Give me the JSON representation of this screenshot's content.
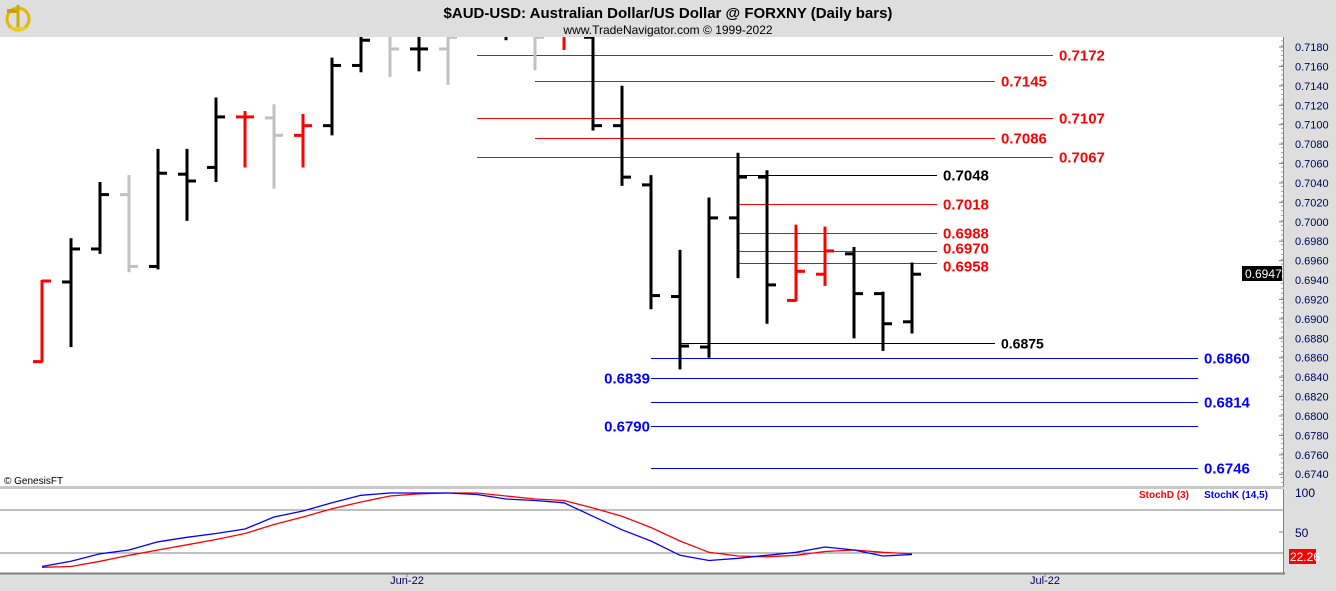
{
  "header": {
    "title": "$AUD-USD:  Australian Dollar/US Dollar @ FORXNY  (Daily bars)",
    "subtitle": "www.TradeNavigator.com © 1999-2022",
    "logo_icon": "sextant-logo-icon"
  },
  "watermark": "© GenesisFT",
  "colors": {
    "up": "#000000",
    "down": "#ff0000",
    "neutral": "#c0c0c0",
    "support": "#0000ff",
    "resistance": "#ff0000",
    "stochK": "#0000ff",
    "stochD": "#ff0000"
  },
  "chart_data": [
    {
      "type": "ohlc",
      "title": "$AUD-USD Daily bars",
      "y_axis": {
        "min": 0.674,
        "max": 0.718,
        "step": 0.002,
        "tick_labels": [
          "0.7180",
          "0.7160",
          "0.7140",
          "0.7120",
          "0.7100",
          "0.7080",
          "0.7060",
          "0.7040",
          "0.7020",
          "0.7000",
          "0.6980",
          "0.6960",
          "0.6940",
          "0.6920",
          "0.6900",
          "0.6880",
          "0.6860",
          "0.6840",
          "0.6820",
          "0.6800",
          "0.6780",
          "0.6760",
          "0.6740"
        ]
      },
      "x_axis": {
        "tick_labels": [
          {
            "label": "Jun-22",
            "bar": 13
          },
          {
            "label": "Jul-22",
            "bar": 35
          }
        ]
      },
      "current_price": "0.6947",
      "bars": [
        {
          "o": 0.6856,
          "h": 0.6939,
          "l": 0.6856,
          "c": 0.6939,
          "color": "down"
        },
        {
          "o": 0.6938,
          "h": 0.6982,
          "l": 0.6872,
          "c": 0.6972,
          "color": "up"
        },
        {
          "o": 0.6972,
          "h": 0.704,
          "l": 0.6968,
          "c": 0.7028,
          "color": "up"
        },
        {
          "o": 0.7028,
          "h": 0.7047,
          "l": 0.6949,
          "c": 0.6954,
          "color": "neutral"
        },
        {
          "o": 0.6954,
          "h": 0.7074,
          "l": 0.6952,
          "c": 0.705,
          "color": "up"
        },
        {
          "o": 0.7049,
          "h": 0.7074,
          "l": 0.7002,
          "c": 0.7042,
          "color": "up"
        },
        {
          "o": 0.7056,
          "h": 0.7127,
          "l": 0.7042,
          "c": 0.7108,
          "color": "up"
        },
        {
          "o": 0.7108,
          "h": 0.7113,
          "l": 0.7057,
          "c": 0.7108,
          "color": "down"
        },
        {
          "o": 0.7107,
          "h": 0.712,
          "l": 0.7035,
          "c": 0.7089,
          "color": "neutral"
        },
        {
          "o": 0.7089,
          "h": 0.711,
          "l": 0.7057,
          "c": 0.7099,
          "color": "down"
        },
        {
          "o": 0.7099,
          "h": 0.7168,
          "l": 0.709,
          "c": 0.7161,
          "color": "up"
        },
        {
          "o": 0.7161,
          "h": 0.7198,
          "l": 0.7155,
          "c": 0.7187,
          "color": "up"
        },
        {
          "o": 0.7198,
          "h": 0.7203,
          "l": 0.715,
          "c": 0.7178,
          "color": "neutral"
        },
        {
          "o": 0.7178,
          "h": 0.72,
          "l": 0.7156,
          "c": 0.7178,
          "color": "up"
        },
        {
          "o": 0.7178,
          "h": 0.72,
          "l": 0.7142,
          "c": 0.719,
          "color": "neutral"
        },
        {
          "o": 0.722,
          "h": 0.724,
          "l": 0.7195,
          "c": 0.721,
          "color": "up"
        },
        {
          "o": 0.72,
          "h": 0.723,
          "l": 0.7188,
          "c": 0.721,
          "color": "up"
        },
        {
          "o": 0.72,
          "h": 0.722,
          "l": 0.7157,
          "c": 0.719,
          "color": "neutral"
        },
        {
          "o": 0.7195,
          "h": 0.7215,
          "l": 0.7178,
          "c": 0.72,
          "color": "down"
        },
        {
          "o": 0.719,
          "h": 0.721,
          "l": 0.7095,
          "c": 0.7099,
          "color": "up"
        },
        {
          "o": 0.7099,
          "h": 0.7139,
          "l": 0.7038,
          "c": 0.7046,
          "color": "up"
        },
        {
          "o": 0.7038,
          "h": 0.7047,
          "l": 0.6911,
          "c": 0.6924,
          "color": "up"
        },
        {
          "o": 0.6923,
          "h": 0.697,
          "l": 0.6849,
          "c": 0.6872,
          "color": "up"
        },
        {
          "o": 0.6871,
          "h": 0.7024,
          "l": 0.6861,
          "c": 0.7004,
          "color": "up"
        },
        {
          "o": 0.7004,
          "h": 0.707,
          "l": 0.6943,
          "c": 0.7046,
          "color": "up"
        },
        {
          "o": 0.7046,
          "h": 0.7052,
          "l": 0.6896,
          "c": 0.6935,
          "color": "up"
        },
        {
          "o": 0.6919,
          "h": 0.6996,
          "l": 0.6919,
          "c": 0.6949,
          "color": "down"
        },
        {
          "o": 0.6946,
          "h": 0.6994,
          "l": 0.6935,
          "c": 0.697,
          "color": "down"
        },
        {
          "o": 0.6967,
          "h": 0.6973,
          "l": 0.6881,
          "c": 0.6926,
          "color": "up"
        },
        {
          "o": 0.6926,
          "h": 0.6927,
          "l": 0.6868,
          "c": 0.6895,
          "color": "up"
        },
        {
          "o": 0.6897,
          "h": 0.6957,
          "l": 0.6886,
          "c": 0.6946,
          "color": "up"
        }
      ],
      "levels": [
        {
          "price": 0.7172,
          "label": "0.7172",
          "color": "#ff0000"
        },
        {
          "price": 0.7145,
          "label": "0.7145",
          "color": "#ff0000"
        },
        {
          "price": 0.7107,
          "label": "0.7107",
          "color": "#ff0000"
        },
        {
          "price": 0.7086,
          "label": "0.7086",
          "color": "#ff0000"
        },
        {
          "price": 0.7067,
          "label": "0.7067",
          "color": "#ff0000"
        },
        {
          "price": 0.7048,
          "label": "0.7048",
          "color": "#000000"
        },
        {
          "price": 0.7018,
          "label": "0.7018",
          "color": "#ff0000"
        },
        {
          "price": 0.6988,
          "label": "0.6988",
          "color": "#ff0000"
        },
        {
          "price": 0.697,
          "label": "0.6970",
          "color": "#ff0000"
        },
        {
          "price": 0.6958,
          "label": "0.6958",
          "color": "#ff0000"
        },
        {
          "price": 0.6875,
          "label": "0.6875",
          "color": "#000000"
        },
        {
          "price": 0.686,
          "label": "0.6860",
          "color": "#0000ff"
        },
        {
          "price": 0.6839,
          "label": "0.6839",
          "color": "#0000ff"
        },
        {
          "price": 0.6814,
          "label": "0.6814",
          "color": "#0000ff"
        },
        {
          "price": 0.679,
          "label": "0.6790",
          "color": "#0000ff"
        },
        {
          "price": 0.6746,
          "label": "0.6746",
          "color": "#0000ff"
        }
      ]
    },
    {
      "type": "line",
      "title": "Stochastic",
      "y_axis": {
        "min": 0,
        "max": 100,
        "tick_labels": [
          "100",
          "50"
        ],
        "reference_lines": [
          80,
          20
        ]
      },
      "legend": [
        "StochD (3)",
        "StochK (14,5)"
      ],
      "last_value": "22.26",
      "series": [
        {
          "name": "StochK (14,5)",
          "color": "#0000ff",
          "values": [
            2,
            9,
            19,
            24,
            35,
            41,
            46,
            52,
            68,
            76,
            87,
            97,
            100,
            100,
            100,
            98,
            92,
            90,
            87,
            69,
            51,
            36,
            17,
            10,
            13,
            17,
            21,
            28,
            24,
            16,
            18
          ]
        },
        {
          "name": "StochD (3)",
          "color": "#ff0000",
          "values": [
            1,
            2,
            9,
            17,
            24,
            31,
            38,
            46,
            58,
            68,
            79,
            88,
            96,
            99,
            100,
            100,
            96,
            92,
            90,
            80,
            69,
            54,
            36,
            21,
            16,
            15,
            17,
            22,
            24,
            21,
            19
          ]
        }
      ]
    }
  ]
}
